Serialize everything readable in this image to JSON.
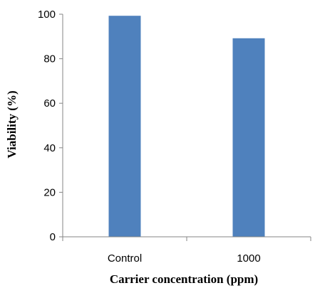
{
  "chart_data": {
    "type": "bar",
    "categories": [
      "Control",
      "1000"
    ],
    "values": [
      99.3,
      89.2
    ],
    "xlabel": "Carrier concentration (ppm)",
    "ylabel": "Viability (%)",
    "ylim": [
      0,
      100
    ],
    "yticks": [
      "0",
      "20",
      "40",
      "60",
      "80",
      "100"
    ],
    "grid": false,
    "legend": "none",
    "bar_color": "#4F81BD",
    "axis_color": "#868686"
  }
}
